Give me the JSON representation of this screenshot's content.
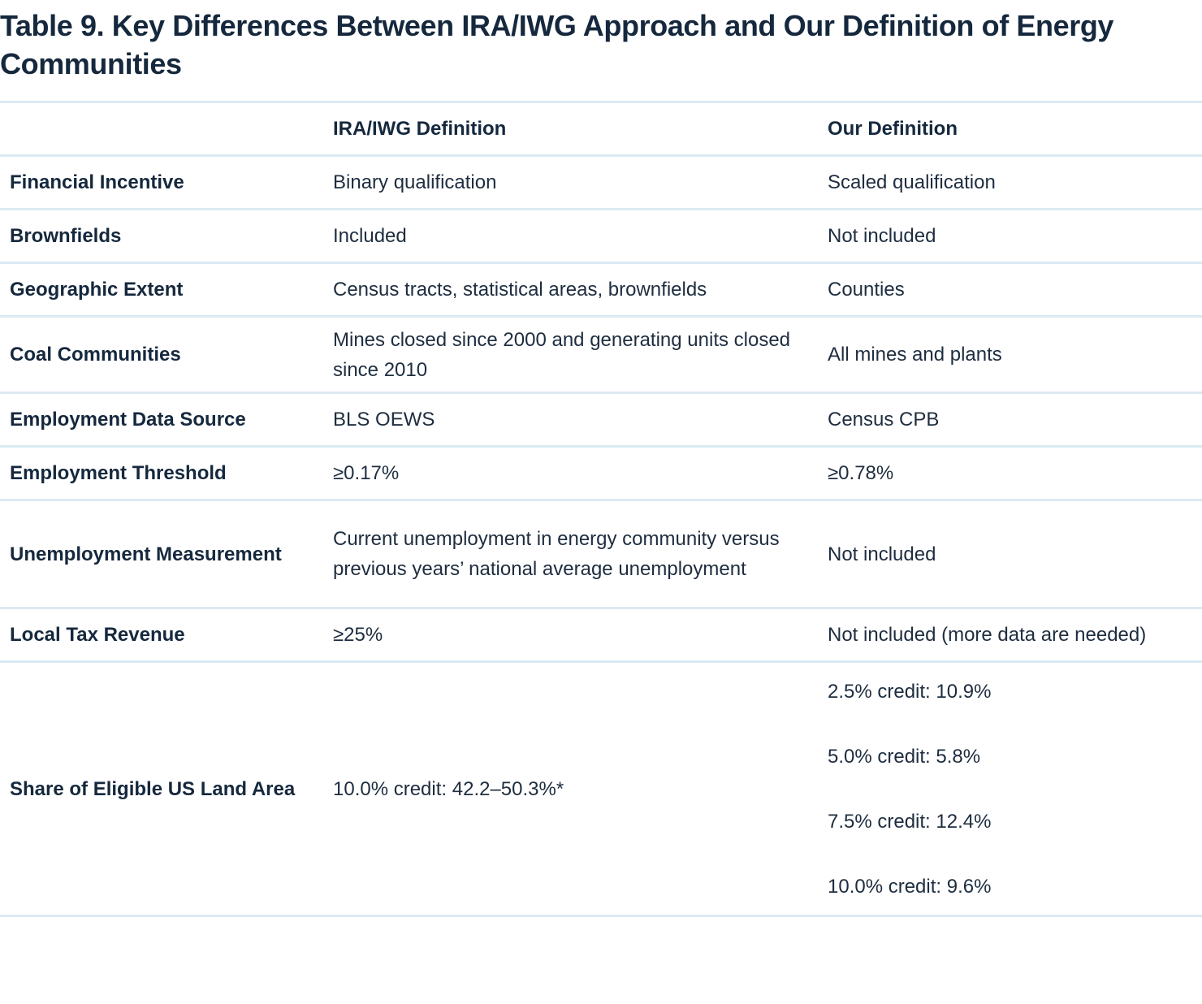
{
  "title": "Table 9.  Key Differences Between IRA/IWG Approach and Our Definition of Energy Communities",
  "table": {
    "headers": [
      "",
      "IRA/IWG Definition",
      "Our Definition"
    ],
    "rows": [
      {
        "label": "Financial Incentive",
        "ira": "Binary qualification",
        "ours": "Scaled qualification"
      },
      {
        "label": "Brownfields",
        "ira": "Included",
        "ours": "Not included"
      },
      {
        "label": "Geographic Extent",
        "ira": "Census tracts, statistical areas, brownfields",
        "ours": "Counties"
      },
      {
        "label": "Coal Communities",
        "ira": "Mines closed since 2000 and generating units closed since 2010",
        "ours": "All mines and plants"
      },
      {
        "label": "Employment Data Source",
        "ira": "BLS OEWS",
        "ours": "Census CPB"
      },
      {
        "label": "Employment Threshold",
        "ira": "≥0.17%",
        "ours": "≥0.78%"
      },
      {
        "label": "Unemployment Measurement",
        "ira": "Current unemployment in energy community versus previous years’ national average unemployment",
        "ours": "Not included"
      },
      {
        "label": "Local Tax Revenue",
        "ira": "≥25%",
        "ours": "Not included (more data are needed)"
      },
      {
        "label": "Share of Eligible US Land Area",
        "ira": "10.0% credit: 42.2–50.3%*",
        "ours": [
          "2.5% credit: 10.9%",
          "5.0% credit: 5.8%",
          "7.5% credit: 12.4%",
          "10.0% credit: 9.6%"
        ]
      }
    ]
  },
  "colors": {
    "text": "#15283d",
    "rule": "#dbe9f3"
  }
}
